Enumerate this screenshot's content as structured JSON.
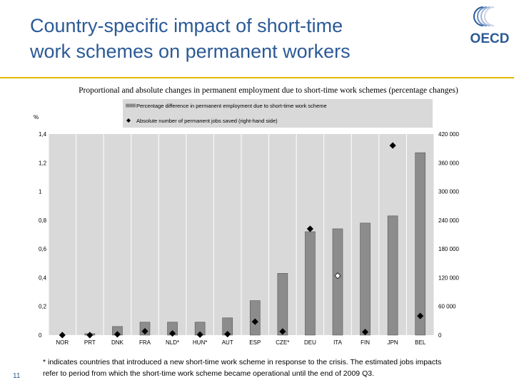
{
  "slide": {
    "title_line1": "Country-specific impact of short-time",
    "title_line2": "work schemes on permanent workers",
    "logo_text": "OECD",
    "footnote_line1": "* indicates countries that introduced a new short-time work scheme in response to the crisis. The estimated jobs impacts",
    "footnote_line2": "refer to period from which the short-time work scheme became operational until the end of 2009 Q3.",
    "page_number": "11"
  },
  "colors": {
    "title": "#2b5a96",
    "rule": "#e6b700",
    "bar_fill": "#8c8c8c",
    "plot_bg": "#d9d9d9",
    "legend_bg": "#d9d9d9",
    "marker": "#000000"
  },
  "chart_data": {
    "type": "bar",
    "title": "Proportional and absolute changes in permanent employment due to short-time work schemes (percentage changes)",
    "y_unit_label": "%",
    "categories": [
      "NOR",
      "PRT",
      "DNK",
      "FRA",
      "NLD*",
      "HUN*",
      "AUT",
      "ESP",
      "CZE*",
      "DEU",
      "ITA",
      "FIN",
      "JPN",
      "BEL"
    ],
    "series": [
      {
        "name": "Percentage difference in permanent employment due to short-time work scheme",
        "type": "bar",
        "axis": "left",
        "values": [
          0.0,
          0.01,
          0.06,
          0.09,
          0.09,
          0.09,
          0.12,
          0.24,
          0.43,
          0.72,
          0.74,
          0.78,
          0.83,
          1.27
        ]
      },
      {
        "name": "Absolute number of permanent jobs saved (right-hand side)",
        "type": "scatter",
        "axis": "right",
        "marker": "diamond",
        "values": [
          0,
          0,
          1500,
          8000,
          3500,
          1000,
          2000,
          28000,
          7500,
          222000,
          124000,
          6500,
          396000,
          40000
        ],
        "hollow": [
          false,
          false,
          false,
          false,
          false,
          false,
          false,
          false,
          false,
          false,
          true,
          false,
          false,
          false
        ]
      }
    ],
    "ylim_left": [
      0,
      1.4
    ],
    "ylim_right": [
      0,
      420000
    ],
    "left_ticks": [
      {
        "v": 0,
        "label": "0"
      },
      {
        "v": 0.2,
        "label": "0,2"
      },
      {
        "v": 0.4,
        "label": "0,4"
      },
      {
        "v": 0.6,
        "label": "0,6"
      },
      {
        "v": 0.8,
        "label": "0,8"
      },
      {
        "v": 1.0,
        "label": "1"
      },
      {
        "v": 1.2,
        "label": "1,2"
      },
      {
        "v": 1.4,
        "label": "1,4"
      }
    ],
    "right_ticks": [
      {
        "v": 0,
        "label": "0"
      },
      {
        "v": 60000,
        "label": "60 000"
      },
      {
        "v": 120000,
        "label": "120 000"
      },
      {
        "v": 180000,
        "label": "180 000"
      },
      {
        "v": 240000,
        "label": "240 000"
      },
      {
        "v": 300000,
        "label": "300 000"
      },
      {
        "v": 360000,
        "label": "360 000"
      },
      {
        "v": 420000,
        "label": "420 000"
      }
    ],
    "grid": "vertical",
    "legend_position": "top"
  }
}
